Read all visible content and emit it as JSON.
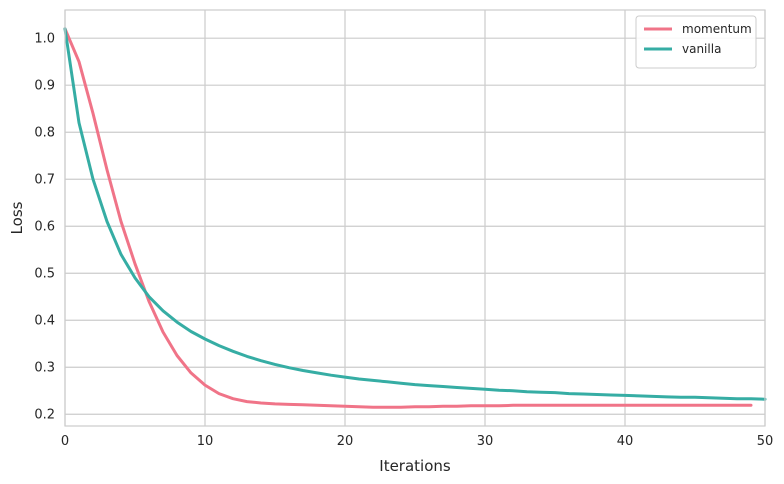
{
  "chart_data": {
    "type": "line",
    "xlabel": "Iterations",
    "ylabel": "Loss",
    "xlim": [
      0,
      50
    ],
    "ylim": [
      0.175,
      1.06
    ],
    "xticks": [
      0,
      10,
      20,
      30,
      40,
      50
    ],
    "yticks": [
      0.2,
      0.3,
      0.4,
      0.5,
      0.6,
      0.7,
      0.8,
      0.9,
      1.0
    ],
    "xtick_labels": [
      "0",
      "10",
      "20",
      "30",
      "40",
      "50"
    ],
    "ytick_labels": [
      "0.2",
      "0.3",
      "0.4",
      "0.5",
      "0.6",
      "0.7",
      "0.8",
      "0.9",
      "1.0"
    ],
    "grid": true,
    "legend_position": "top-right",
    "series": [
      {
        "name": "momentum",
        "color": "#f07488",
        "x": [
          0,
          1,
          2,
          3,
          4,
          5,
          6,
          7,
          8,
          9,
          10,
          11,
          12,
          13,
          14,
          15,
          16,
          17,
          18,
          19,
          20,
          21,
          22,
          23,
          24,
          25,
          26,
          27,
          28,
          29,
          30,
          31,
          32,
          33,
          34,
          35,
          36,
          37,
          38,
          39,
          40,
          41,
          42,
          43,
          44,
          45,
          46,
          47,
          48,
          49
        ],
        "y": [
          1.02,
          0.95,
          0.84,
          0.72,
          0.61,
          0.52,
          0.44,
          0.375,
          0.325,
          0.288,
          0.262,
          0.244,
          0.233,
          0.227,
          0.224,
          0.222,
          0.221,
          0.22,
          0.219,
          0.218,
          0.217,
          0.216,
          0.215,
          0.215,
          0.215,
          0.216,
          0.216,
          0.217,
          0.217,
          0.218,
          0.218,
          0.218,
          0.219,
          0.219,
          0.219,
          0.219,
          0.219,
          0.219,
          0.219,
          0.219,
          0.219,
          0.219,
          0.219,
          0.219,
          0.219,
          0.219,
          0.219,
          0.219,
          0.219,
          0.219
        ]
      },
      {
        "name": "vanilla",
        "color": "#36ada4",
        "x": [
          0,
          1,
          2,
          3,
          4,
          5,
          6,
          7,
          8,
          9,
          10,
          11,
          12,
          13,
          14,
          15,
          16,
          17,
          18,
          19,
          20,
          21,
          22,
          23,
          24,
          25,
          26,
          27,
          28,
          29,
          30,
          31,
          32,
          33,
          34,
          35,
          36,
          37,
          38,
          39,
          40,
          41,
          42,
          43,
          44,
          45,
          46,
          47,
          48,
          49,
          50
        ],
        "y": [
          1.02,
          0.82,
          0.7,
          0.61,
          0.54,
          0.49,
          0.45,
          0.42,
          0.396,
          0.376,
          0.36,
          0.346,
          0.334,
          0.323,
          0.314,
          0.306,
          0.299,
          0.293,
          0.288,
          0.283,
          0.279,
          0.275,
          0.272,
          0.269,
          0.266,
          0.263,
          0.261,
          0.259,
          0.257,
          0.255,
          0.253,
          0.251,
          0.25,
          0.248,
          0.247,
          0.246,
          0.244,
          0.243,
          0.242,
          0.241,
          0.24,
          0.239,
          0.238,
          0.237,
          0.236,
          0.236,
          0.235,
          0.234,
          0.233,
          0.233,
          0.232
        ]
      }
    ]
  }
}
